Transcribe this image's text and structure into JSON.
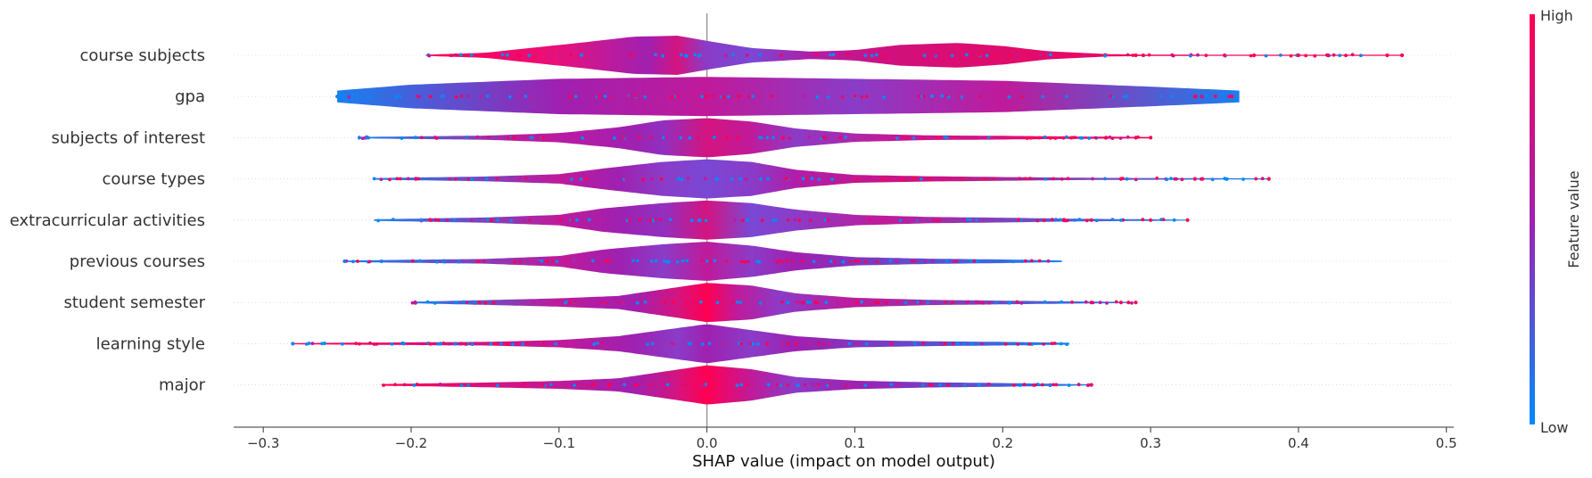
{
  "chart_data": {
    "type": "violin",
    "title": "",
    "xlabel": "SHAP value (impact on model output)",
    "ylabel": "",
    "xlim": [
      -0.32,
      0.505
    ],
    "xticks": [
      -0.3,
      -0.2,
      -0.1,
      0.0,
      0.1,
      0.2,
      0.3,
      0.4,
      0.5
    ],
    "xtick_labels": [
      "−0.3",
      "−0.2",
      "−0.1",
      "0.0",
      "0.1",
      "0.2",
      "0.3",
      "0.4",
      "0.5"
    ],
    "zero_line": 0.0,
    "colorbar": {
      "label": "Feature value",
      "high": "High",
      "low": "Low",
      "high_color": "#ff0052",
      "low_color": "#008bfb"
    },
    "features": [
      {
        "name": "course subjects",
        "range": [
          -0.19,
          0.47
        ],
        "outliers": [
          0.35,
          0.37,
          0.4,
          0.42,
          0.46,
          0.47,
          0.29,
          0.295
        ],
        "density": [
          [
            -0.19,
            0.3
          ],
          [
            -0.15,
            1.2
          ],
          [
            -0.12,
            3.5
          ],
          [
            -0.08,
            6.5
          ],
          [
            -0.05,
            9.0
          ],
          [
            -0.02,
            9.5
          ],
          [
            0.0,
            7.0
          ],
          [
            0.03,
            3.5
          ],
          [
            0.07,
            1.8
          ],
          [
            0.1,
            2.5
          ],
          [
            0.13,
            5.0
          ],
          [
            0.17,
            6.0
          ],
          [
            0.2,
            4.5
          ],
          [
            0.23,
            2.0
          ],
          [
            0.27,
            0.6
          ],
          [
            0.3,
            0.3
          ],
          [
            0.47,
            0.2
          ]
        ],
        "colors": [
          [
            -0.19,
            "#ff0052"
          ],
          [
            -0.1,
            "#e8107a"
          ],
          [
            -0.07,
            "#c01a9a"
          ],
          [
            -0.04,
            "#a020b0"
          ],
          [
            -0.02,
            "#d41480"
          ],
          [
            0.0,
            "#8a3cc8"
          ],
          [
            0.03,
            "#7a48d4"
          ],
          [
            0.07,
            "#b01ea8"
          ],
          [
            0.12,
            "#d0107e"
          ],
          [
            0.2,
            "#e00c6c"
          ],
          [
            0.47,
            "#ff0052"
          ]
        ]
      },
      {
        "name": "gpa",
        "range": [
          -0.25,
          0.36
        ],
        "outliers": [
          -0.25,
          -0.24,
          -0.23,
          0.33,
          0.355
        ],
        "density": [
          [
            -0.25,
            0.3
          ],
          [
            -0.2,
            0.6
          ],
          [
            -0.1,
            0.9
          ],
          [
            0.0,
            1.0
          ],
          [
            0.1,
            0.9
          ],
          [
            0.2,
            0.8
          ],
          [
            0.3,
            0.5
          ],
          [
            0.36,
            0.3
          ]
        ],
        "colors": [
          [
            -0.25,
            "#1880f0"
          ],
          [
            -0.1,
            "#a020b0"
          ],
          [
            0.0,
            "#c01a9a"
          ],
          [
            0.1,
            "#8a3cc8"
          ],
          [
            0.2,
            "#c01a9a"
          ],
          [
            0.36,
            "#1880f0"
          ]
        ]
      },
      {
        "name": "subjects of interest",
        "range": [
          -0.235,
          0.3
        ],
        "outliers": [
          -0.235,
          -0.23,
          0.29,
          0.3,
          0.27
        ],
        "density": [
          [
            -0.235,
            0.3
          ],
          [
            -0.15,
            0.9
          ],
          [
            -0.1,
            2.0
          ],
          [
            -0.06,
            4.5
          ],
          [
            -0.03,
            7.5
          ],
          [
            0.0,
            8.5
          ],
          [
            0.03,
            7.0
          ],
          [
            0.06,
            4.0
          ],
          [
            0.1,
            1.8
          ],
          [
            0.15,
            1.0
          ],
          [
            0.2,
            0.8
          ],
          [
            0.25,
            0.5
          ],
          [
            0.3,
            0.3
          ]
        ],
        "colors": [
          [
            -0.235,
            "#1880f0"
          ],
          [
            -0.12,
            "#c01a9a"
          ],
          [
            -0.08,
            "#b01ea8"
          ],
          [
            -0.05,
            "#a020b0"
          ],
          [
            -0.03,
            "#9030c0"
          ],
          [
            0.0,
            "#d41480"
          ],
          [
            0.03,
            "#c01a9a"
          ],
          [
            0.06,
            "#8a3cc8"
          ],
          [
            0.12,
            "#c01a9a"
          ],
          [
            0.3,
            "#ff0052"
          ]
        ]
      },
      {
        "name": "course types",
        "range": [
          -0.225,
          0.38
        ],
        "outliers": [
          0.28,
          0.33,
          0.335,
          0.38
        ],
        "density": [
          [
            -0.225,
            0.3
          ],
          [
            -0.15,
            0.9
          ],
          [
            -0.1,
            1.8
          ],
          [
            -0.07,
            4.0
          ],
          [
            -0.03,
            6.5
          ],
          [
            0.0,
            7.5
          ],
          [
            0.03,
            6.5
          ],
          [
            0.06,
            3.5
          ],
          [
            0.1,
            1.5
          ],
          [
            0.15,
            1.0
          ],
          [
            0.22,
            0.6
          ],
          [
            0.26,
            0.4
          ],
          [
            0.38,
            0.2
          ]
        ],
        "colors": [
          [
            -0.225,
            "#1880f0"
          ],
          [
            -0.1,
            "#c01a9a"
          ],
          [
            -0.06,
            "#a020b0"
          ],
          [
            -0.03,
            "#8a3cc8"
          ],
          [
            0.0,
            "#7a48d4"
          ],
          [
            0.03,
            "#8a3cc8"
          ],
          [
            0.06,
            "#b01ea8"
          ],
          [
            0.15,
            "#d0107e"
          ],
          [
            0.38,
            "#1880f0"
          ]
        ]
      },
      {
        "name": "extracurricular activities",
        "range": [
          -0.225,
          0.325
        ],
        "outliers": [
          0.3,
          0.325,
          0.26
        ],
        "density": [
          [
            -0.225,
            0.3
          ],
          [
            -0.15,
            1.0
          ],
          [
            -0.1,
            2.0
          ],
          [
            -0.07,
            4.5
          ],
          [
            -0.03,
            6.5
          ],
          [
            0.0,
            7.5
          ],
          [
            0.03,
            6.5
          ],
          [
            0.06,
            4.0
          ],
          [
            0.1,
            2.0
          ],
          [
            0.15,
            1.2
          ],
          [
            0.2,
            0.9
          ],
          [
            0.25,
            0.5
          ],
          [
            0.325,
            0.2
          ]
        ],
        "colors": [
          [
            -0.225,
            "#1880f0"
          ],
          [
            -0.1,
            "#c01a9a"
          ],
          [
            -0.06,
            "#a020b0"
          ],
          [
            -0.03,
            "#9030c0"
          ],
          [
            0.0,
            "#d41480"
          ],
          [
            0.03,
            "#7a48d4"
          ],
          [
            0.06,
            "#8a3cc8"
          ],
          [
            0.12,
            "#c01a9a"
          ],
          [
            0.325,
            "#1880f0"
          ]
        ]
      },
      {
        "name": "previous courses",
        "range": [
          -0.245,
          0.24
        ],
        "outliers": [
          -0.245,
          -0.22
        ],
        "density": [
          [
            -0.245,
            0.3
          ],
          [
            -0.15,
            0.9
          ],
          [
            -0.1,
            2.0
          ],
          [
            -0.07,
            4.5
          ],
          [
            -0.03,
            6.5
          ],
          [
            0.0,
            7.5
          ],
          [
            0.03,
            6.0
          ],
          [
            0.06,
            3.5
          ],
          [
            0.1,
            1.6
          ],
          [
            0.15,
            1.0
          ],
          [
            0.2,
            0.7
          ],
          [
            0.24,
            0.3
          ]
        ],
        "colors": [
          [
            -0.245,
            "#1880f0"
          ],
          [
            -0.1,
            "#c01a9a"
          ],
          [
            -0.06,
            "#a020b0"
          ],
          [
            -0.03,
            "#8a3cc8"
          ],
          [
            0.0,
            "#c01a9a"
          ],
          [
            0.03,
            "#8a3cc8"
          ],
          [
            0.06,
            "#a020b0"
          ],
          [
            0.24,
            "#1880f0"
          ]
        ]
      },
      {
        "name": "student semester",
        "range": [
          -0.2,
          0.29
        ],
        "outliers": [
          0.26,
          0.28,
          0.285,
          0.29
        ],
        "density": [
          [
            -0.2,
            0.3
          ],
          [
            -0.15,
            0.9
          ],
          [
            -0.1,
            1.6
          ],
          [
            -0.06,
            2.5
          ],
          [
            -0.03,
            5.0
          ],
          [
            0.0,
            7.5
          ],
          [
            0.03,
            6.5
          ],
          [
            0.06,
            3.5
          ],
          [
            0.1,
            1.8
          ],
          [
            0.15,
            1.0
          ],
          [
            0.2,
            0.7
          ],
          [
            0.25,
            0.4
          ],
          [
            0.29,
            0.2
          ]
        ],
        "colors": [
          [
            -0.2,
            "#1880f0"
          ],
          [
            -0.1,
            "#c01a9a"
          ],
          [
            -0.05,
            "#a020b0"
          ],
          [
            -0.02,
            "#d41480"
          ],
          [
            0.0,
            "#ff0052"
          ],
          [
            0.02,
            "#c01a9a"
          ],
          [
            0.05,
            "#8a3cc8"
          ],
          [
            0.1,
            "#c01a9a"
          ],
          [
            0.29,
            "#1880f0"
          ]
        ]
      },
      {
        "name": "learning style",
        "range": [
          -0.28,
          0.245
        ],
        "outliers": [
          -0.28,
          -0.205,
          -0.18,
          -0.17
        ],
        "density": [
          [
            -0.28,
            0.2
          ],
          [
            -0.15,
            0.6
          ],
          [
            -0.1,
            1.2
          ],
          [
            -0.06,
            2.5
          ],
          [
            -0.03,
            4.5
          ],
          [
            0.0,
            6.5
          ],
          [
            0.03,
            4.5
          ],
          [
            0.06,
            2.5
          ],
          [
            0.1,
            1.2
          ],
          [
            0.15,
            0.8
          ],
          [
            0.2,
            0.6
          ],
          [
            0.245,
            0.3
          ]
        ],
        "colors": [
          [
            -0.28,
            "#ff0052"
          ],
          [
            -0.1,
            "#c01a9a"
          ],
          [
            -0.05,
            "#a020b0"
          ],
          [
            -0.02,
            "#8a3cc8"
          ],
          [
            0.0,
            "#a020b0"
          ],
          [
            0.03,
            "#8a3cc8"
          ],
          [
            0.06,
            "#a020b0"
          ],
          [
            0.245,
            "#1880f0"
          ]
        ]
      },
      {
        "name": "major",
        "range": [
          -0.22,
          0.26
        ],
        "outliers": [
          0.26
        ],
        "density": [
          [
            -0.22,
            0.3
          ],
          [
            -0.15,
            0.9
          ],
          [
            -0.1,
            1.5
          ],
          [
            -0.06,
            2.5
          ],
          [
            -0.03,
            5.0
          ],
          [
            0.0,
            7.5
          ],
          [
            0.03,
            6.0
          ],
          [
            0.06,
            3.0
          ],
          [
            0.1,
            1.6
          ],
          [
            0.15,
            1.0
          ],
          [
            0.2,
            0.7
          ],
          [
            0.26,
            0.2
          ]
        ],
        "colors": [
          [
            -0.22,
            "#ff0052"
          ],
          [
            -0.1,
            "#c01a9a"
          ],
          [
            -0.05,
            "#a020b0"
          ],
          [
            -0.02,
            "#d41480"
          ],
          [
            0.0,
            "#ff0052"
          ],
          [
            0.03,
            "#c01a9a"
          ],
          [
            0.06,
            "#8a3cc8"
          ],
          [
            0.1,
            "#a020b0"
          ],
          [
            0.26,
            "#1880f0"
          ]
        ]
      }
    ]
  }
}
